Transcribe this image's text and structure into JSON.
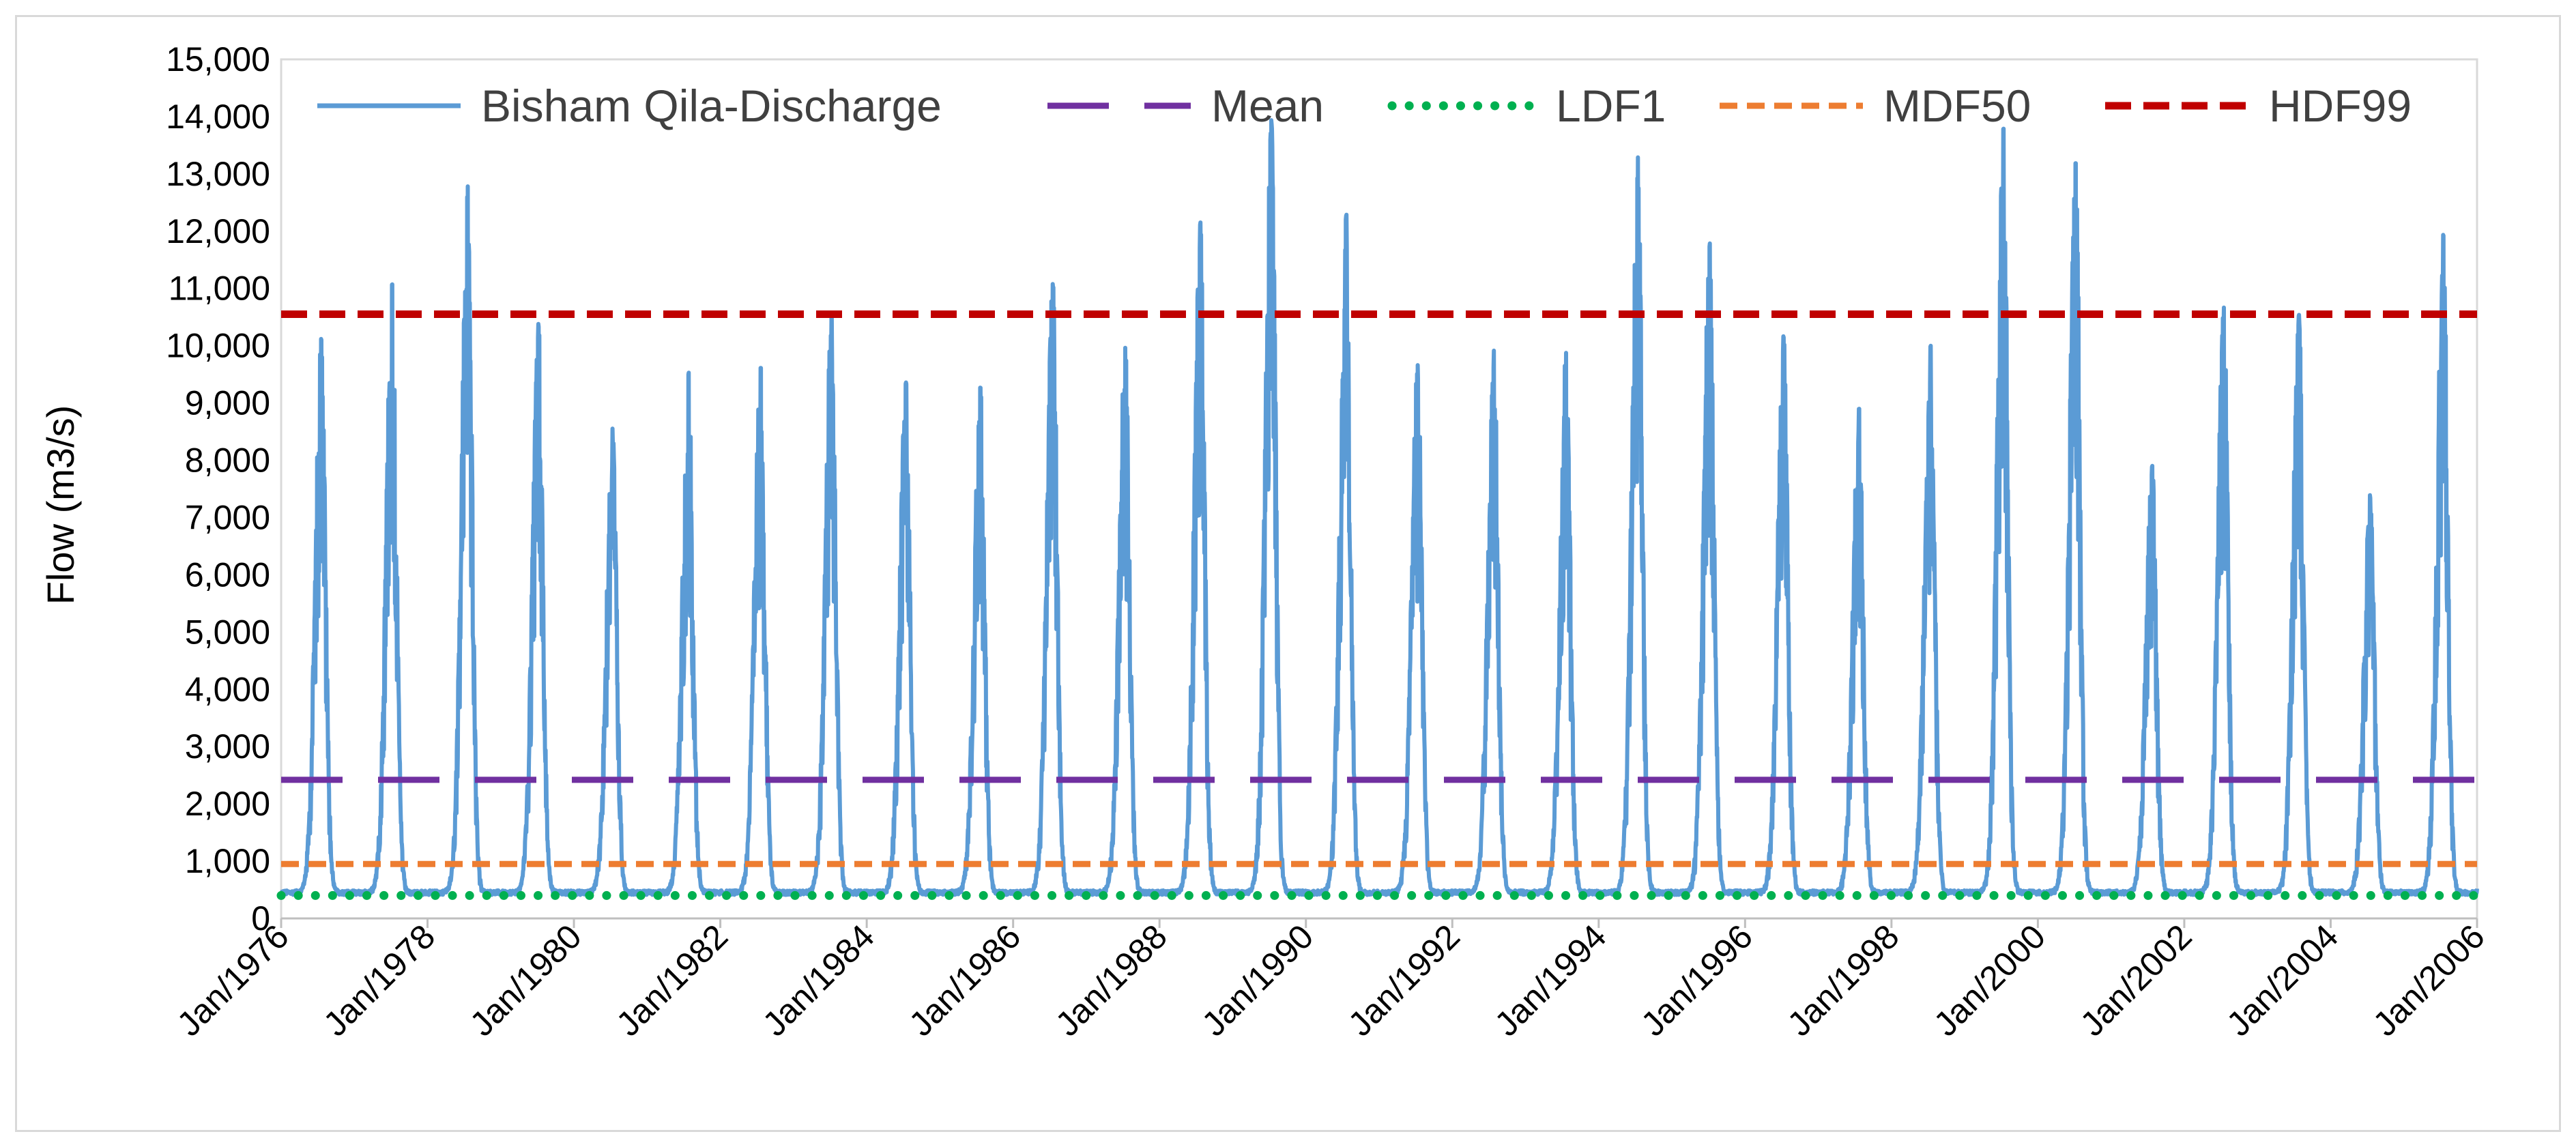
{
  "chart_data": {
    "type": "line",
    "title": "",
    "xlabel": "",
    "ylabel": "Flow (m3/s)",
    "x_range": [
      1976.0,
      2006.0
    ],
    "ylim": [
      0,
      15000
    ],
    "y_ticks": [
      0,
      1000,
      2000,
      3000,
      4000,
      5000,
      6000,
      7000,
      8000,
      9000,
      10000,
      11000,
      12000,
      13000,
      14000,
      15000
    ],
    "y_tick_labels": [
      "0",
      "1,000",
      "2,000",
      "3,000",
      "4,000",
      "5,000",
      "6,000",
      "7,000",
      "8,000",
      "9,000",
      "10,000",
      "11,000",
      "12,000",
      "13,000",
      "14,000",
      "15,000"
    ],
    "x_tick_labels": [
      "Jan/1976",
      "Jan/1978",
      "Jan/1980",
      "Jan/1982",
      "Jan/1984",
      "Jan/1986",
      "Jan/1988",
      "Jan/1990",
      "Jan/1992",
      "Jan/1994",
      "Jan/1996",
      "Jan/1998",
      "Jan/2000",
      "Jan/2002",
      "Jan/2004",
      "Jan/2006"
    ],
    "legend_position": "top",
    "series": [
      {
        "name": "Bisham Qila-Discharge",
        "color": "#5b9bd5",
        "style": "solid",
        "annual_peaks": [
          {
            "year": 1976,
            "peak": 10100
          },
          {
            "year": 1977,
            "peak": 11100
          },
          {
            "year": 1978,
            "peak": 12750
          },
          {
            "year": 1979,
            "peak": 10350
          },
          {
            "year": 1980,
            "peak": 8550
          },
          {
            "year": 1981,
            "peak": 9500
          },
          {
            "year": 1982,
            "peak": 9600
          },
          {
            "year": 1983,
            "peak": 10500
          },
          {
            "year": 1984,
            "peak": 9350
          },
          {
            "year": 1985,
            "peak": 9250
          },
          {
            "year": 1986,
            "peak": 11050
          },
          {
            "year": 1987,
            "peak": 10000
          },
          {
            "year": 1988,
            "peak": 12150
          },
          {
            "year": 1989,
            "peak": 13900
          },
          {
            "year": 1990,
            "peak": 12300
          },
          {
            "year": 1991,
            "peak": 9650
          },
          {
            "year": 1992,
            "peak": 9900
          },
          {
            "year": 1993,
            "peak": 9900
          },
          {
            "year": 1994,
            "peak": 13250
          },
          {
            "year": 1995,
            "peak": 11750
          },
          {
            "year": 1996,
            "peak": 10150
          },
          {
            "year": 1997,
            "peak": 8900
          },
          {
            "year": 1998,
            "peak": 10000
          },
          {
            "year": 1999,
            "peak": 13750
          },
          {
            "year": 2000,
            "peak": 13200
          },
          {
            "year": 2001,
            "peak": 7900
          },
          {
            "year": 2002,
            "peak": 10650
          },
          {
            "year": 2003,
            "peak": 10500
          },
          {
            "year": 2004,
            "peak": 7350
          },
          {
            "year": 2005,
            "peak": 11950
          }
        ],
        "baseflow": 450
      },
      {
        "name": "Mean",
        "color": "#7030a0",
        "style": "long-dash",
        "value": 2420
      },
      {
        "name": "LDF1",
        "color": "#00b050",
        "style": "dotted",
        "value": 400
      },
      {
        "name": "MDF50",
        "color": "#ed7d31",
        "style": "dashed",
        "value": 950
      },
      {
        "name": "HDF99",
        "color": "#c00000",
        "style": "dashed",
        "value": 10550
      }
    ]
  }
}
